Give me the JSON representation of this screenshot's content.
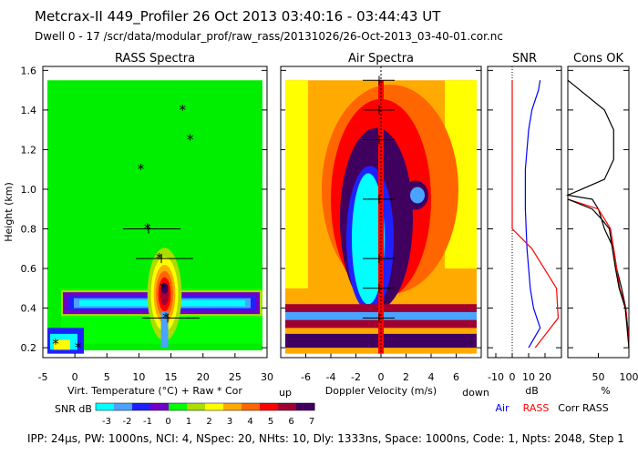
{
  "header": {
    "line1": "Metcrax-II  449_Profiler  26 Oct 2013  03:40:16 - 03:44:43 UT",
    "line2": "Dwell  0 - 17   /scr/data/modular_prof/raw_rass/20131026/26-Oct-2013_03-40-01.cor.nc"
  },
  "footer": {
    "params": "IPP: 24µs, PW: 1000ns, NCI: 4, NSpec: 20, NHts: 10, Dly: 1333ns, Space: 1000ns, Code: 1, Npts: 2048, Step 1"
  },
  "colors": {
    "snr_scale": [
      "#00ffff",
      "#4aa3ff",
      "#2020ff",
      "#7000c8",
      "#00ff00",
      "#aadd00",
      "#ffff00",
      "#ffaa00",
      "#ff6600",
      "#ff0000",
      "#a00030",
      "#400060"
    ],
    "background_green": "#00ee00",
    "air_line": "#0000ff",
    "rass_line": "#ff0000"
  },
  "chart_data": [
    {
      "type": "heatmap",
      "title": "RASS Spectra",
      "xlabel": "Virt. Temperature (°C)  + Raw  * Cor",
      "ylabel": "Height (km)",
      "xlim": [
        -5,
        30
      ],
      "ylim": [
        0.15,
        1.62
      ],
      "xticks": [
        "-5",
        "0",
        "5",
        "10",
        "15",
        "20",
        "25",
        "30"
      ],
      "yticks": [
        "0.2",
        "0.4",
        "0.6",
        "0.8",
        "1.0",
        "1.2",
        "1.4",
        "1.6"
      ],
      "yticks_values": [
        0.2,
        0.4,
        0.6,
        0.8,
        1.0,
        1.2,
        1.4,
        1.6
      ],
      "cor_points": [
        [
          0.5,
          0.2
        ],
        [
          -3.0,
          0.22
        ],
        [
          14.2,
          0.35
        ],
        [
          13.8,
          0.5
        ],
        [
          13.2,
          0.65
        ],
        [
          11.3,
          0.8
        ],
        [
          10.3,
          1.1
        ],
        [
          18.0,
          1.25
        ],
        [
          16.8,
          1.4
        ]
      ],
      "raw_points": [
        [
          14.5,
          0.35
        ],
        [
          13.5,
          0.65
        ],
        [
          11.5,
          0.8
        ]
      ]
    },
    {
      "type": "heatmap",
      "title": "Air Spectra",
      "xlabel": "Doppler Velocity (m/s)",
      "xlabel_left": "up",
      "xlabel_right": "down",
      "xlim": [
        -8,
        8
      ],
      "ylim": [
        0.15,
        1.62
      ],
      "xticks": [
        "-6",
        "-4",
        "-2",
        "0",
        "2",
        "4",
        "6"
      ],
      "xticks_values": [
        -6,
        -4,
        -2,
        0,
        2,
        4,
        6
      ]
    },
    {
      "type": "line",
      "title": "SNR",
      "xlabel": "dB",
      "xlim": [
        -15,
        30
      ],
      "ylim": [
        0.15,
        1.62
      ],
      "xticks": [
        "-10",
        "0",
        "10",
        "20"
      ],
      "xticks_values": [
        -10,
        0,
        10,
        20
      ],
      "series": [
        {
          "name": "Air",
          "x": [
            10,
            17,
            13,
            11,
            10,
            9,
            8.5,
            8,
            8,
            8,
            9,
            10,
            12,
            14,
            16,
            17
          ],
          "y": [
            0.2,
            0.3,
            0.4,
            0.5,
            0.6,
            0.7,
            0.8,
            0.9,
            1.0,
            1.1,
            1.2,
            1.3,
            1.4,
            1.45,
            1.5,
            1.55
          ]
        },
        {
          "name": "RASS",
          "x": [
            14,
            28,
            27,
            12,
            0,
            0,
            0,
            0,
            0,
            0,
            0,
            0,
            0
          ],
          "y": [
            0.2,
            0.35,
            0.5,
            0.7,
            0.8,
            0.9,
            1.0,
            1.1,
            1.2,
            1.3,
            1.4,
            1.5,
            1.55
          ]
        }
      ]
    },
    {
      "type": "line",
      "title": "Cons OK",
      "xlabel": "%",
      "legend": [
        "Air",
        "RASS",
        "Corr RASS"
      ],
      "xlim": [
        0,
        100
      ],
      "ylim": [
        0.15,
        1.62
      ],
      "xticks": [
        "50",
        "100"
      ],
      "xticks_values": [
        50,
        100
      ],
      "series": [
        {
          "name": "Air",
          "x": [
            100,
            98,
            95,
            88,
            80,
            75,
            60,
            55,
            50,
            40,
            0,
            60,
            75,
            75,
            60,
            0
          ],
          "y": [
            0.2,
            0.3,
            0.4,
            0.5,
            0.6,
            0.7,
            0.8,
            0.85,
            0.9,
            0.95,
            0.97,
            1.05,
            1.15,
            1.3,
            1.4,
            1.55
          ]
        },
        {
          "name": "RASS",
          "x": [
            100,
            98,
            95,
            85,
            80,
            75,
            70,
            60,
            50,
            0
          ],
          "y": [
            0.2,
            0.3,
            0.4,
            0.5,
            0.6,
            0.7,
            0.8,
            0.85,
            0.9,
            0.95
          ]
        },
        {
          "name": "Corr RASS",
          "x": [
            100,
            97,
            94,
            84,
            78,
            73,
            68,
            55,
            40,
            0
          ],
          "y": [
            0.2,
            0.3,
            0.4,
            0.5,
            0.6,
            0.7,
            0.8,
            0.85,
            0.9,
            0.95
          ]
        }
      ]
    }
  ],
  "colorbar": {
    "label": "SNR dB",
    "ticks": [
      "-3",
      "-2",
      "-1",
      "0",
      "1",
      "2",
      "3",
      "4",
      "5",
      "6",
      "7"
    ]
  }
}
